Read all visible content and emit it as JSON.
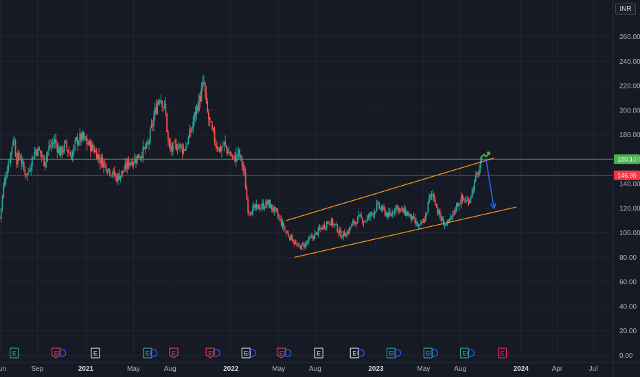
{
  "currency_button": "INR",
  "chart_data": {
    "type": "candlestick",
    "y_axis": {
      "ticks": [
        0,
        20,
        40,
        60,
        80,
        100,
        120,
        140,
        160,
        180,
        200,
        220,
        240,
        260
      ],
      "tick_labels": [
        "0.00",
        "20.00",
        "40.00",
        "60.00",
        "80.00",
        "100.00",
        "120.00",
        "140.00",
        "160.00",
        "180.00",
        "200.00",
        "220.00",
        "240.00",
        "260.00"
      ],
      "range": [
        -2,
        290
      ]
    },
    "x_axis": {
      "ticks": [
        {
          "label": "Jun",
          "date": "2020-06-01",
          "bold": false
        },
        {
          "label": "Sep",
          "date": "2020-09-01",
          "bold": false
        },
        {
          "label": "2021",
          "date": "2021-01-01",
          "bold": true
        },
        {
          "label": "May",
          "date": "2021-05-01",
          "bold": false
        },
        {
          "label": "Aug",
          "date": "2021-08-01",
          "bold": false
        },
        {
          "label": "2022",
          "date": "2022-01-01",
          "bold": true
        },
        {
          "label": "May",
          "date": "2022-05-01",
          "bold": false
        },
        {
          "label": "Aug",
          "date": "2022-08-01",
          "bold": false
        },
        {
          "label": "2023",
          "date": "2023-01-01",
          "bold": true
        },
        {
          "label": "May",
          "date": "2023-05-01",
          "bold": false
        },
        {
          "label": "Aug",
          "date": "2023-08-01",
          "bold": false
        },
        {
          "label": "2024",
          "date": "2024-01-01",
          "bold": true
        },
        {
          "label": "Apr",
          "date": "2024-04-01",
          "bold": false
        },
        {
          "label": "Jul",
          "date": "2024-07-01",
          "bold": false
        }
      ],
      "range": [
        "2020-05-30",
        "2024-08-20"
      ]
    },
    "price_levels": [
      {
        "value": 160.1,
        "label": "160.10",
        "color": "#4caf50"
      },
      {
        "value": 146.95,
        "label": "146.95",
        "color": "#f23645"
      }
    ],
    "price_path": [
      [
        "2020-05-30",
        112
      ],
      [
        "2020-06-08",
        138
      ],
      [
        "2020-06-18",
        155
      ],
      [
        "2020-06-26",
        165
      ],
      [
        "2020-07-03",
        180
      ],
      [
        "2020-07-10",
        160
      ],
      [
        "2020-07-20",
        162
      ],
      [
        "2020-07-30",
        150
      ],
      [
        "2020-08-08",
        148
      ],
      [
        "2020-08-18",
        160
      ],
      [
        "2020-08-28",
        168
      ],
      [
        "2020-09-08",
        166
      ],
      [
        "2020-09-18",
        158
      ],
      [
        "2020-10-01",
        170
      ],
      [
        "2020-10-15",
        175
      ],
      [
        "2020-10-28",
        165
      ],
      [
        "2020-11-10",
        172
      ],
      [
        "2020-11-25",
        162
      ],
      [
        "2020-12-08",
        175
      ],
      [
        "2020-12-22",
        178
      ],
      [
        "2021-01-08",
        172
      ],
      [
        "2021-01-22",
        168
      ],
      [
        "2021-02-05",
        160
      ],
      [
        "2021-02-20",
        155
      ],
      [
        "2021-03-05",
        150
      ],
      [
        "2021-03-20",
        145
      ],
      [
        "2021-04-05",
        150
      ],
      [
        "2021-04-20",
        158
      ],
      [
        "2021-05-05",
        160
      ],
      [
        "2021-05-20",
        165
      ],
      [
        "2021-06-05",
        170
      ],
      [
        "2021-06-15",
        185
      ],
      [
        "2021-06-25",
        200
      ],
      [
        "2021-07-05",
        212
      ],
      [
        "2021-07-10",
        210
      ],
      [
        "2021-07-20",
        200
      ],
      [
        "2021-07-28",
        170
      ],
      [
        "2021-08-05",
        168
      ],
      [
        "2021-08-20",
        172
      ],
      [
        "2021-09-05",
        168
      ],
      [
        "2021-09-20",
        180
      ],
      [
        "2021-10-05",
        200
      ],
      [
        "2021-10-15",
        210
      ],
      [
        "2021-10-25",
        222
      ],
      [
        "2021-11-01",
        200
      ],
      [
        "2021-11-12",
        185
      ],
      [
        "2021-11-25",
        172
      ],
      [
        "2021-12-05",
        168
      ],
      [
        "2021-12-15",
        172
      ],
      [
        "2021-12-28",
        165
      ],
      [
        "2022-01-08",
        160
      ],
      [
        "2022-01-20",
        165
      ],
      [
        "2022-01-28",
        158
      ],
      [
        "2022-02-05",
        145
      ],
      [
        "2022-02-12",
        120
      ],
      [
        "2022-02-20",
        118
      ],
      [
        "2022-03-05",
        120
      ],
      [
        "2022-03-20",
        122
      ],
      [
        "2022-04-05",
        124
      ],
      [
        "2022-04-20",
        118
      ],
      [
        "2022-05-05",
        110
      ],
      [
        "2022-05-20",
        100
      ],
      [
        "2022-06-05",
        95
      ],
      [
        "2022-06-18",
        88
      ],
      [
        "2022-07-05",
        90
      ],
      [
        "2022-07-20",
        95
      ],
      [
        "2022-08-05",
        100
      ],
      [
        "2022-08-20",
        105
      ],
      [
        "2022-09-05",
        110
      ],
      [
        "2022-09-20",
        106
      ],
      [
        "2022-10-05",
        98
      ],
      [
        "2022-10-20",
        100
      ],
      [
        "2022-11-05",
        108
      ],
      [
        "2022-11-20",
        112
      ],
      [
        "2022-12-05",
        110
      ],
      [
        "2022-12-20",
        115
      ],
      [
        "2023-01-05",
        122
      ],
      [
        "2023-01-20",
        118
      ],
      [
        "2023-02-05",
        113
      ],
      [
        "2023-02-20",
        122
      ],
      [
        "2023-03-05",
        118
      ],
      [
        "2023-03-20",
        116
      ],
      [
        "2023-04-05",
        110
      ],
      [
        "2023-04-20",
        104
      ],
      [
        "2023-05-05",
        112
      ],
      [
        "2023-05-15",
        128
      ],
      [
        "2023-05-25",
        132
      ],
      [
        "2023-06-05",
        118
      ],
      [
        "2023-06-15",
        110
      ],
      [
        "2023-06-28",
        106
      ],
      [
        "2023-07-10",
        112
      ],
      [
        "2023-07-22",
        122
      ],
      [
        "2023-08-05",
        128
      ],
      [
        "2023-08-20",
        125
      ],
      [
        "2023-09-01",
        135
      ],
      [
        "2023-09-10",
        145
      ],
      [
        "2023-09-18",
        152
      ],
      [
        "2023-09-25",
        158
      ]
    ],
    "annotations": {
      "channel_upper": [
        [
          "2022-05-20",
          110
        ],
        [
          "2023-10-25",
          161
        ]
      ],
      "channel_lower": [
        [
          "2022-06-10",
          80
        ],
        [
          "2023-12-20",
          121
        ]
      ],
      "projection_arrow": [
        [
          "2023-10-05",
          160
        ],
        [
          "2023-10-25",
          120
        ]
      ]
    },
    "event_markers": [
      {
        "date": "2020-07-05",
        "letter": "E",
        "color": "#22ab94",
        "extra": false
      },
      {
        "date": "2020-10-18",
        "letter": "E",
        "color": "#f23645",
        "extra": true
      },
      {
        "date": "2021-01-25",
        "letter": "E",
        "color": "#d1d4dc",
        "extra": false
      },
      {
        "date": "2021-06-05",
        "letter": "E",
        "color": "#22ab94",
        "extra": true
      },
      {
        "date": "2021-08-10",
        "letter": "E",
        "color": "#f23645",
        "extra": false
      },
      {
        "date": "2021-11-10",
        "letter": "E",
        "color": "#f23645",
        "extra": true
      },
      {
        "date": "2022-02-08",
        "letter": "E",
        "color": "#d1d4dc",
        "extra": true
      },
      {
        "date": "2022-05-08",
        "letter": "E",
        "color": "#f23645",
        "extra": true
      },
      {
        "date": "2022-08-10",
        "letter": "E",
        "color": "#d1d4dc",
        "extra": false
      },
      {
        "date": "2022-11-08",
        "letter": "E",
        "color": "#d1d4dc",
        "extra": true
      },
      {
        "date": "2023-02-08",
        "letter": "E",
        "color": "#22ab94",
        "extra": true
      },
      {
        "date": "2023-05-12",
        "letter": "E",
        "color": "#22ab94",
        "extra": true
      },
      {
        "date": "2023-08-12",
        "letter": "E",
        "color": "#22ab94",
        "extra": true
      },
      {
        "date": "2023-11-15",
        "letter": "E",
        "color": "#e91e63",
        "extra": false
      }
    ],
    "colors": {
      "background": "#161a25",
      "grid": "#232632",
      "up": "#26a69a",
      "down": "#ef5350",
      "channel": "#f7931a",
      "arrow": "#2962ff",
      "target_icon": "#4caf50"
    },
    "grid": true
  }
}
